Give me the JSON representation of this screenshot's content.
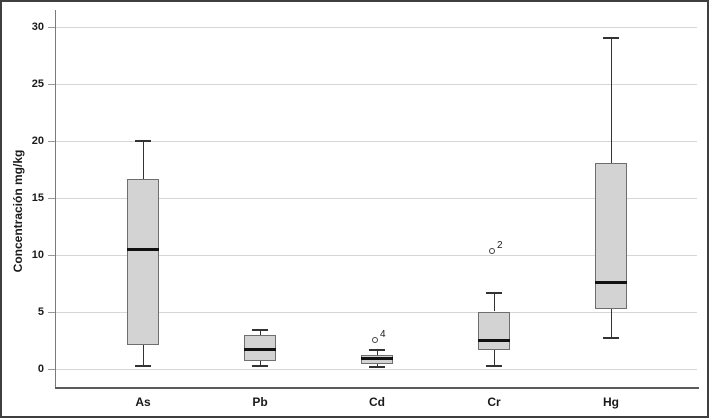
{
  "chart_data": {
    "type": "box",
    "title": "",
    "xlabel": "",
    "ylabel": "Concentración mg/kg",
    "categories": [
      "As",
      "Pb",
      "Cd",
      "Cr",
      "Hg"
    ],
    "yticks": [
      0,
      5,
      10,
      15,
      20,
      25,
      30
    ],
    "ylim": [
      -1.6,
      31.4
    ],
    "grid": true,
    "legend": false,
    "series": [
      {
        "category": "As",
        "whisker_low": 0.2,
        "q1": 2.1,
        "median": 10.5,
        "q3": 16.6,
        "whisker_high": 20.0,
        "outliers": []
      },
      {
        "category": "Pb",
        "whisker_low": 0.2,
        "q1": 0.7,
        "median": 1.7,
        "q3": 2.9,
        "whisker_high": 3.4,
        "outliers": []
      },
      {
        "category": "Cd",
        "whisker_low": 0.1,
        "q1": 0.4,
        "median": 0.9,
        "q3": 1.2,
        "whisker_high": 1.6,
        "outliers": [
          {
            "value": 2.5,
            "label": "4"
          }
        ]
      },
      {
        "category": "Cr",
        "whisker_low": 0.2,
        "q1": 1.6,
        "median": 2.5,
        "q3": 5.0,
        "whisker_high": 6.6,
        "outliers": [
          {
            "value": 10.3,
            "label": "2"
          }
        ]
      },
      {
        "category": "Hg",
        "whisker_low": 2.7,
        "q1": 5.2,
        "median": 7.6,
        "q3": 18.0,
        "whisker_high": 29.0,
        "outliers": []
      }
    ],
    "colors": {
      "box_fill": "#d3d3d3",
      "box_border": "#6e6e6e",
      "median": "#111111",
      "whisker": "#333333",
      "gridline": "#d6d6d6",
      "axis": "#7a7a7a",
      "text": "#1a1a1a",
      "background": "#ffffff"
    }
  }
}
